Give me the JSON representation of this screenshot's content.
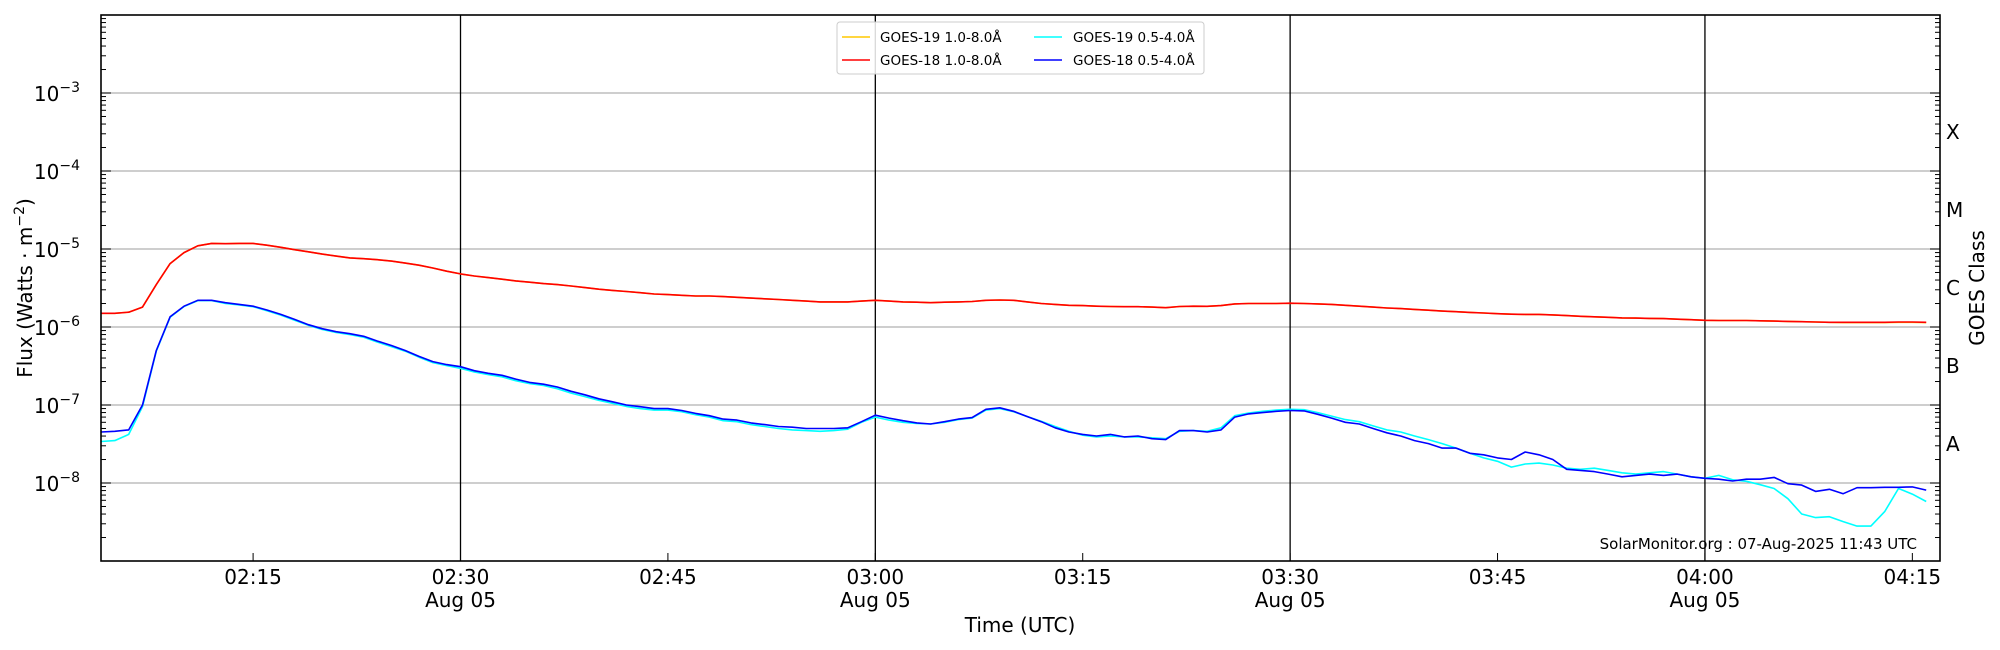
{
  "chart_data": {
    "type": "line",
    "title": "",
    "xlabel": "Time (UTC)",
    "ylabel": "Flux (Watts · m",
    "ylabel_exp": "−2",
    "ylabel_close": ")",
    "y2label": "GOES Class",
    "yscale": "log",
    "ylim": [
      1e-09,
      0.01
    ],
    "xlim": [
      "02:04",
      "04:17"
    ],
    "x_start": "02:04",
    "x_step_minutes": 1,
    "grid": "horizontal at decades",
    "legend_placement": "top-center",
    "watermark": "SolarMonitor.org : 07-Aug-2025 11:43 UTC",
    "yticks": [
      {
        "value": 0.001,
        "base": "10",
        "exp": "−3"
      },
      {
        "value": 0.0001,
        "base": "10",
        "exp": "−4"
      },
      {
        "value": 1e-05,
        "base": "10",
        "exp": "−5"
      },
      {
        "value": 1e-06,
        "base": "10",
        "exp": "−6"
      },
      {
        "value": 1e-07,
        "base": "10",
        "exp": "−7"
      },
      {
        "value": 1e-08,
        "base": "10",
        "exp": "−8"
      }
    ],
    "xticks": [
      {
        "time": "02:15",
        "label": "02:15"
      },
      {
        "time": "02:30",
        "label": "02:30",
        "sub": "Aug 05"
      },
      {
        "time": "02:45",
        "label": "02:45"
      },
      {
        "time": "03:00",
        "label": "03:00",
        "sub": "Aug 05"
      },
      {
        "time": "03:15",
        "label": "03:15"
      },
      {
        "time": "03:30",
        "label": "03:30",
        "sub": "Aug 05"
      },
      {
        "time": "03:45",
        "label": "03:45"
      },
      {
        "time": "04:00",
        "label": "04:00",
        "sub": "Aug 05"
      },
      {
        "time": "04:15",
        "label": "04:15"
      }
    ],
    "vlines": [
      "02:30",
      "03:00",
      "03:30",
      "04:00"
    ],
    "goes_classes": [
      {
        "label": "A",
        "threshold": 1e-08
      },
      {
        "label": "B",
        "threshold": 1e-07
      },
      {
        "label": "C",
        "threshold": 1e-06
      },
      {
        "label": "M",
        "threshold": 1e-05
      },
      {
        "label": "X",
        "threshold": 0.0001
      }
    ],
    "series": [
      {
        "name": "GOES-19 1.0-8.0Å",
        "color": "#ffc800",
        "values": [
          1.5e-06,
          1.5e-06,
          1.55e-06,
          1.8e-06,
          3.5e-06,
          6.5e-06,
          9e-06,
          1.1e-05,
          1.18e-05,
          1.17e-05,
          1.18e-05,
          1.18e-05,
          1.12e-05,
          1.05e-05,
          9.8e-06,
          9.2e-06,
          8.6e-06,
          8.1e-06,
          7.7e-06,
          7.5e-06,
          7.3e-06,
          7e-06,
          6.6e-06,
          6.2e-06,
          5.7e-06,
          5.2e-06,
          4.8e-06,
          4.5e-06,
          4.3e-06,
          4.1e-06,
          3.9e-06,
          3.75e-06,
          3.6e-06,
          3.5e-06,
          3.35e-06,
          3.2e-06,
          3.05e-06,
          2.95e-06,
          2.85e-06,
          2.75e-06,
          2.65e-06,
          2.6e-06,
          2.55e-06,
          2.5e-06,
          2.5e-06,
          2.45e-06,
          2.4e-06,
          2.35e-06,
          2.3e-06,
          2.25e-06,
          2.2e-06,
          2.15e-06,
          2.1e-06,
          2.1e-06,
          2.1e-06,
          2.15e-06,
          2.2e-06,
          2.15e-06,
          2.1e-06,
          2.08e-06,
          2.05e-06,
          2.08e-06,
          2.1e-06,
          2.12e-06,
          2.2e-06,
          2.22e-06,
          2.2e-06,
          2.1e-06,
          2e-06,
          1.95e-06,
          1.9e-06,
          1.88e-06,
          1.85e-06,
          1.83e-06,
          1.82e-06,
          1.82e-06,
          1.8e-06,
          1.77e-06,
          1.83e-06,
          1.85e-06,
          1.84e-06,
          1.88e-06,
          1.98e-06,
          2e-06,
          2e-06,
          2e-06,
          2.02e-06,
          2e-06,
          1.98e-06,
          1.95e-06,
          1.9e-06,
          1.85e-06,
          1.8e-06,
          1.75e-06,
          1.72e-06,
          1.68e-06,
          1.64e-06,
          1.6e-06,
          1.57e-06,
          1.54e-06,
          1.51e-06,
          1.48e-06,
          1.46e-06,
          1.45e-06,
          1.45e-06,
          1.43e-06,
          1.4e-06,
          1.37e-06,
          1.35e-06,
          1.33e-06,
          1.31e-06,
          1.3e-06,
          1.29e-06,
          1.28e-06,
          1.26e-06,
          1.24e-06,
          1.22e-06,
          1.21e-06,
          1.21e-06,
          1.21e-06,
          1.2e-06,
          1.19e-06,
          1.18e-06,
          1.17e-06,
          1.16e-06,
          1.15e-06,
          1.14e-06,
          1.14e-06,
          1.14e-06,
          1.14e-06,
          1.15e-06,
          1.15e-06,
          1.14e-06
        ]
      },
      {
        "name": "GOES-18 1.0-8.0Å",
        "color": "#ff0000",
        "values": [
          1.5e-06,
          1.5e-06,
          1.55e-06,
          1.8e-06,
          3.5e-06,
          6.5e-06,
          9e-06,
          1.1e-05,
          1.18e-05,
          1.17e-05,
          1.18e-05,
          1.18e-05,
          1.12e-05,
          1.05e-05,
          9.8e-06,
          9.2e-06,
          8.6e-06,
          8.1e-06,
          7.7e-06,
          7.5e-06,
          7.3e-06,
          7e-06,
          6.6e-06,
          6.2e-06,
          5.7e-06,
          5.2e-06,
          4.8e-06,
          4.5e-06,
          4.3e-06,
          4.1e-06,
          3.9e-06,
          3.75e-06,
          3.6e-06,
          3.5e-06,
          3.35e-06,
          3.2e-06,
          3.05e-06,
          2.95e-06,
          2.85e-06,
          2.75e-06,
          2.65e-06,
          2.6e-06,
          2.55e-06,
          2.5e-06,
          2.5e-06,
          2.45e-06,
          2.4e-06,
          2.35e-06,
          2.3e-06,
          2.25e-06,
          2.2e-06,
          2.15e-06,
          2.1e-06,
          2.1e-06,
          2.1e-06,
          2.15e-06,
          2.2e-06,
          2.15e-06,
          2.1e-06,
          2.08e-06,
          2.05e-06,
          2.08e-06,
          2.1e-06,
          2.12e-06,
          2.2e-06,
          2.22e-06,
          2.2e-06,
          2.1e-06,
          2e-06,
          1.95e-06,
          1.9e-06,
          1.88e-06,
          1.85e-06,
          1.83e-06,
          1.82e-06,
          1.82e-06,
          1.8e-06,
          1.77e-06,
          1.83e-06,
          1.85e-06,
          1.84e-06,
          1.88e-06,
          1.98e-06,
          2e-06,
          2e-06,
          2e-06,
          2.02e-06,
          2e-06,
          1.98e-06,
          1.95e-06,
          1.9e-06,
          1.85e-06,
          1.8e-06,
          1.75e-06,
          1.72e-06,
          1.68e-06,
          1.64e-06,
          1.6e-06,
          1.57e-06,
          1.54e-06,
          1.51e-06,
          1.48e-06,
          1.46e-06,
          1.45e-06,
          1.45e-06,
          1.43e-06,
          1.4e-06,
          1.37e-06,
          1.35e-06,
          1.33e-06,
          1.31e-06,
          1.3e-06,
          1.29e-06,
          1.28e-06,
          1.26e-06,
          1.24e-06,
          1.22e-06,
          1.21e-06,
          1.21e-06,
          1.21e-06,
          1.2e-06,
          1.19e-06,
          1.18e-06,
          1.17e-06,
          1.16e-06,
          1.15e-06,
          1.15e-06,
          1.15e-06,
          1.15e-06,
          1.15e-06,
          1.16e-06,
          1.16e-06,
          1.15e-06
        ]
      },
      {
        "name": "GOES-19 0.5-4.0Å",
        "color": "#00ffff",
        "values": [
          3.4e-08,
          3.5e-08,
          4.2e-08,
          9.5e-08,
          4.9e-07,
          1.33e-06,
          1.83e-06,
          2.18e-06,
          2.18e-06,
          2e-06,
          1.92e-06,
          1.82e-06,
          1.62e-06,
          1.42e-06,
          1.22e-06,
          1.05e-06,
          9.3e-07,
          8.5e-07,
          8e-07,
          7.4e-07,
          6.4e-07,
          5.6e-07,
          4.9e-07,
          4.1e-07,
          3.5e-07,
          3.2e-07,
          2.95e-07,
          2.65e-07,
          2.45e-07,
          2.3e-07,
          2.05e-07,
          1.88e-07,
          1.78e-07,
          1.62e-07,
          1.42e-07,
          1.28e-07,
          1.15e-07,
          1.05e-07,
          9.6e-08,
          9e-08,
          8.6e-08,
          8.6e-08,
          8.2e-08,
          7.5e-08,
          7e-08,
          6.3e-08,
          6.1e-08,
          5.6e-08,
          5.3e-08,
          5e-08,
          4.8e-08,
          4.7e-08,
          4.6e-08,
          4.7e-08,
          4.9e-08,
          6e-08,
          7e-08,
          6.4e-08,
          6e-08,
          5.8e-08,
          5.7e-08,
          6e-08,
          6.5e-08,
          6.8e-08,
          8.6e-08,
          9e-08,
          8.2e-08,
          7.1e-08,
          6.2e-08,
          5.3e-08,
          4.6e-08,
          4.1e-08,
          3.9e-08,
          4e-08,
          3.9e-08,
          3.9e-08,
          3.8e-08,
          3.7e-08,
          4.6e-08,
          4.7e-08,
          4.6e-08,
          5.1e-08,
          7.3e-08,
          7.9e-08,
          8.3e-08,
          8.6e-08,
          8.8e-08,
          8.7e-08,
          8e-08,
          7.2e-08,
          6.5e-08,
          6.1e-08,
          5.4e-08,
          4.8e-08,
          4.5e-08,
          4e-08,
          3.6e-08,
          3.2e-08,
          2.8e-08,
          2.4e-08,
          2.1e-08,
          1.9e-08,
          1.6e-08,
          1.75e-08,
          1.8e-08,
          1.7e-08,
          1.55e-08,
          1.5e-08,
          1.55e-08,
          1.45e-08,
          1.35e-08,
          1.3e-08,
          1.35e-08,
          1.4e-08,
          1.3e-08,
          1.2e-08,
          1.15e-08,
          1.25e-08,
          1.1e-08,
          1.05e-08,
          9.5e-09,
          8.5e-09,
          6.3e-09,
          4e-09,
          3.6e-09,
          3.7e-09,
          3.2e-09,
          2.8e-09,
          2.8e-09,
          4.3e-09,
          8.5e-09,
          7.2e-09,
          5.8e-09
        ]
      },
      {
        "name": "GOES-18 0.5-4.0Å",
        "color": "#0000ff",
        "values": [
          4.5e-08,
          4.6e-08,
          4.8e-08,
          1e-07,
          5e-07,
          1.35e-06,
          1.85e-06,
          2.2e-06,
          2.2e-06,
          2.05e-06,
          1.95e-06,
          1.85e-06,
          1.65e-06,
          1.45e-06,
          1.25e-06,
          1.07e-06,
          9.5e-07,
          8.7e-07,
          8.2e-07,
          7.6e-07,
          6.6e-07,
          5.8e-07,
          5e-07,
          4.2e-07,
          3.6e-07,
          3.3e-07,
          3.1e-07,
          2.75e-07,
          2.55e-07,
          2.4e-07,
          2.15e-07,
          1.95e-07,
          1.85e-07,
          1.7e-07,
          1.5e-07,
          1.35e-07,
          1.2e-07,
          1.1e-07,
          1e-07,
          9.5e-08,
          9e-08,
          9e-08,
          8.5e-08,
          7.8e-08,
          7.3e-08,
          6.6e-08,
          6.4e-08,
          5.9e-08,
          5.6e-08,
          5.3e-08,
          5.2e-08,
          5e-08,
          5e-08,
          5e-08,
          5.1e-08,
          6.1e-08,
          7.4e-08,
          6.8e-08,
          6.3e-08,
          5.9e-08,
          5.7e-08,
          6.1e-08,
          6.6e-08,
          6.9e-08,
          8.8e-08,
          9.2e-08,
          8.3e-08,
          7.1e-08,
          6.1e-08,
          5.1e-08,
          4.5e-08,
          4.2e-08,
          4e-08,
          4.2e-08,
          3.9e-08,
          4e-08,
          3.7e-08,
          3.6e-08,
          4.7e-08,
          4.7e-08,
          4.5e-08,
          4.8e-08,
          7e-08,
          7.7e-08,
          8e-08,
          8.3e-08,
          8.5e-08,
          8.4e-08,
          7.6e-08,
          6.8e-08,
          6e-08,
          5.7e-08,
          5e-08,
          4.4e-08,
          4e-08,
          3.5e-08,
          3.2e-08,
          2.8e-08,
          2.8e-08,
          2.4e-08,
          2.3e-08,
          2.1e-08,
          2e-08,
          2.5e-08,
          2.3e-08,
          2e-08,
          1.5e-08,
          1.45e-08,
          1.4e-08,
          1.3e-08,
          1.2e-08,
          1.25e-08,
          1.3e-08,
          1.25e-08,
          1.3e-08,
          1.2e-08,
          1.15e-08,
          1.12e-08,
          1.06e-08,
          1.12e-08,
          1.12e-08,
          1.18e-08,
          9.8e-09,
          9.4e-09,
          7.8e-09,
          8.3e-09,
          7.3e-09,
          8.7e-09,
          8.7e-09,
          8.8e-09,
          8.8e-09,
          8.9e-09,
          8.1e-09
        ]
      }
    ]
  }
}
